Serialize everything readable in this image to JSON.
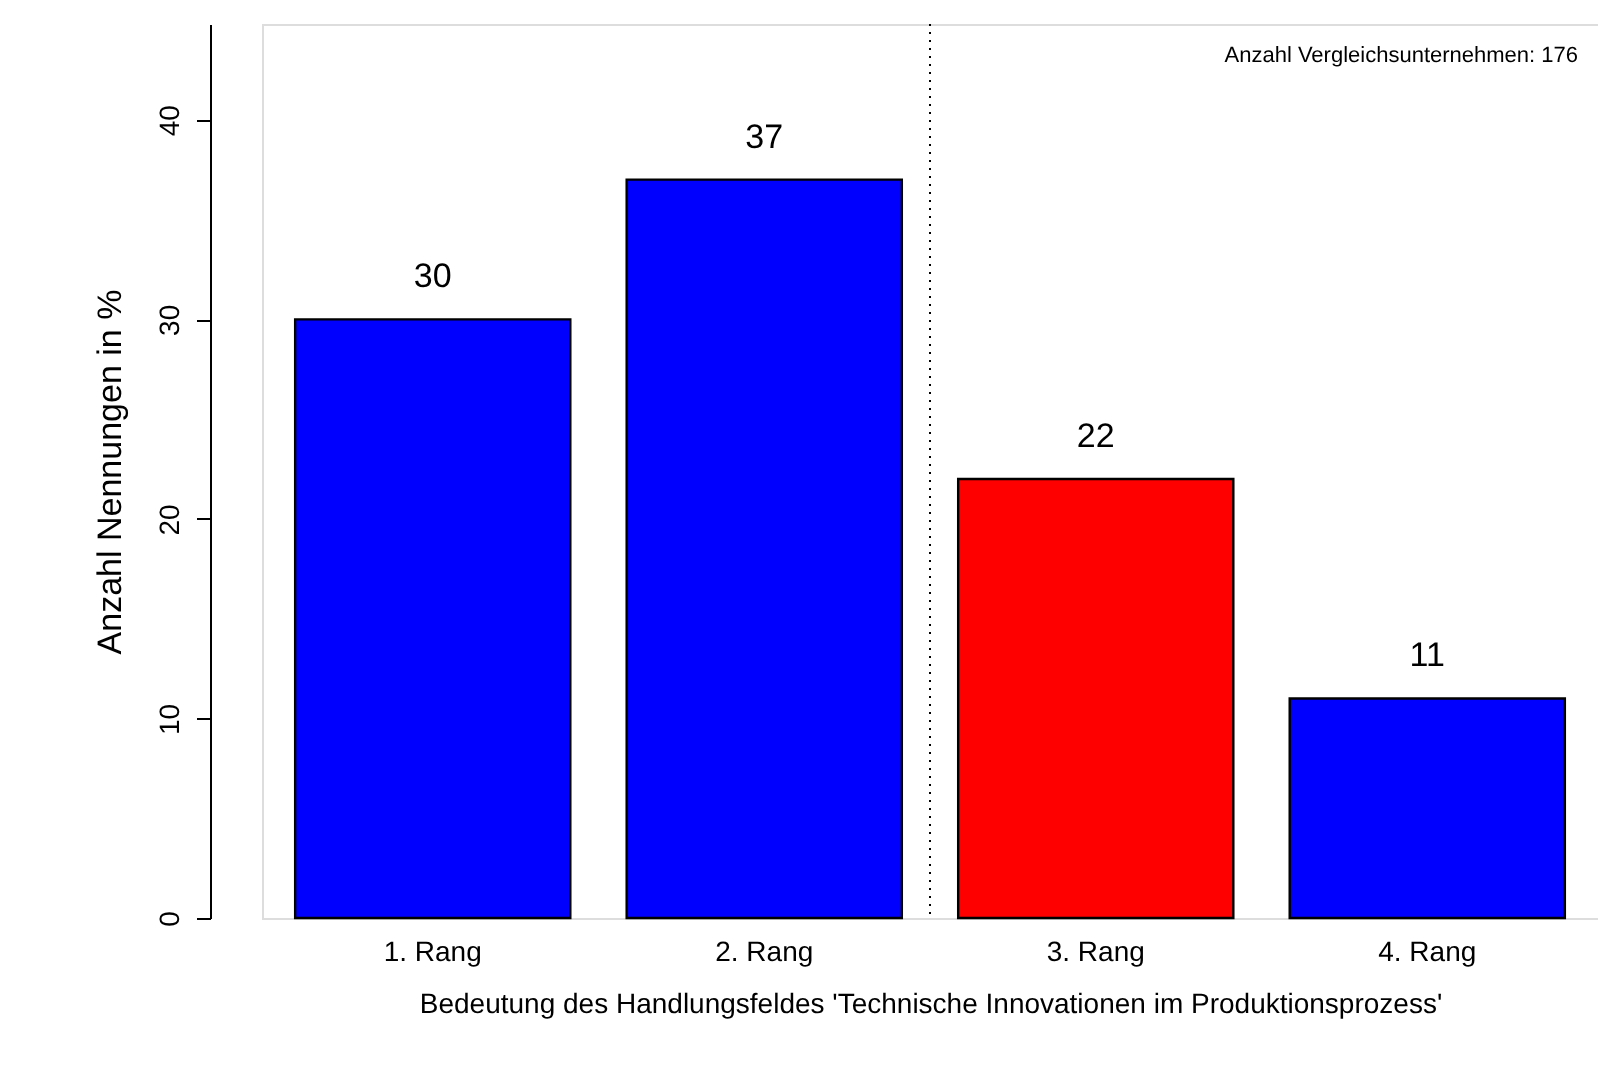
{
  "chart_data": {
    "type": "bar",
    "xlabel": "Bedeutung des Handlungsfeldes 'Technische Innovationen im Produktionsprozess'",
    "ylabel": "Anzahl Nennungen in %",
    "categories": [
      "1. Rang",
      "2. Rang",
      "3. Rang",
      "4. Rang"
    ],
    "values": [
      30,
      37,
      22,
      11
    ],
    "colors": [
      "#0000ff",
      "#0000ff",
      "#ff0000",
      "#0000ff"
    ],
    "data_labels": true,
    "ylim": [
      0,
      44.8
    ],
    "yticks": [
      0,
      10,
      20,
      30,
      40
    ],
    "grid": false,
    "annotations": [
      "Anzahl Vergleichsunternehmen: 176"
    ]
  }
}
